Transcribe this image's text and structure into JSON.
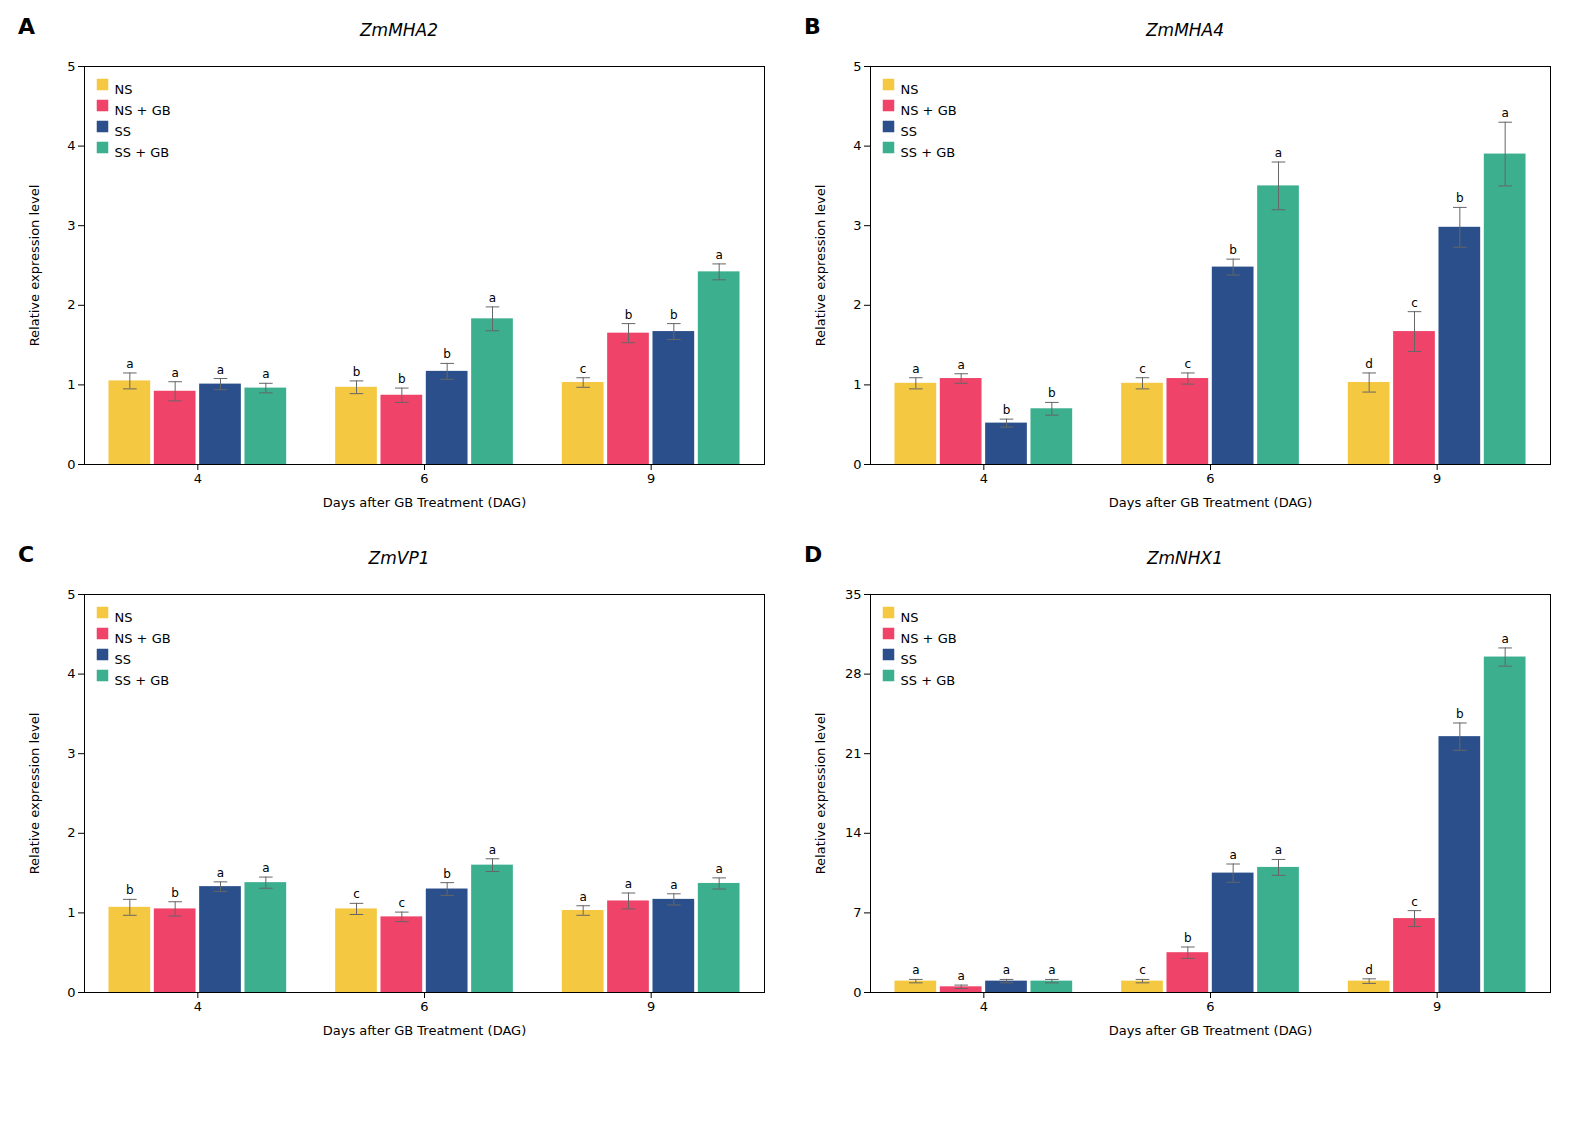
{
  "chart_data": [
    {
      "type": "bar",
      "title": "ZmMHA2",
      "annotation": "A",
      "xlabel": "Days after GB Treatment (DAG)",
      "ylabel": "Relative expression level",
      "categories": [
        "4",
        "6",
        "9"
      ],
      "series": [
        {
          "name": "NS",
          "color": "#F5C842",
          "values": [
            1.05,
            0.97,
            1.03
          ],
          "errors": [
            0.1,
            0.08,
            0.06
          ],
          "letters": [
            "a",
            "b",
            "c"
          ]
        },
        {
          "name": "NS + GB",
          "color": "#F0436A",
          "values": [
            0.92,
            0.87,
            1.65
          ],
          "errors": [
            0.12,
            0.09,
            0.12
          ],
          "letters": [
            "a",
            "b",
            "b"
          ]
        },
        {
          "name": "SS",
          "color": "#2B4F8A",
          "values": [
            1.01,
            1.17,
            1.67
          ],
          "errors": [
            0.07,
            0.1,
            0.1
          ],
          "letters": [
            "a",
            "b",
            "b"
          ]
        },
        {
          "name": "SS + GB",
          "color": "#3BAF8E",
          "values": [
            0.96,
            1.83,
            2.42
          ],
          "errors": [
            0.06,
            0.15,
            0.1
          ],
          "letters": [
            "a",
            "a",
            "a"
          ]
        }
      ],
      "ylim": [
        0,
        5
      ],
      "yticks": [
        0,
        1,
        2,
        3,
        4,
        5
      ],
      "grid": false,
      "legend": "upper left"
    },
    {
      "type": "bar",
      "title": "ZmMHA4",
      "annotation": "B",
      "xlabel": "Days after GB Treatment (DAG)",
      "ylabel": "Relative expression level",
      "categories": [
        "4",
        "6",
        "9"
      ],
      "series": [
        {
          "name": "NS",
          "color": "#F5C842",
          "values": [
            1.02,
            1.02,
            1.03
          ],
          "errors": [
            0.07,
            0.07,
            0.12
          ],
          "letters": [
            "a",
            "c",
            "d"
          ]
        },
        {
          "name": "NS + GB",
          "color": "#F0436A",
          "values": [
            1.08,
            1.08,
            1.67
          ],
          "errors": [
            0.06,
            0.07,
            0.25
          ],
          "letters": [
            "a",
            "c",
            "c"
          ]
        },
        {
          "name": "SS",
          "color": "#2B4F8A",
          "values": [
            0.52,
            2.48,
            2.98
          ],
          "errors": [
            0.05,
            0.1,
            0.25
          ],
          "letters": [
            "b",
            "b",
            "b"
          ]
        },
        {
          "name": "SS + GB",
          "color": "#3BAF8E",
          "values": [
            0.7,
            3.5,
            3.9
          ],
          "errors": [
            0.08,
            0.3,
            0.4
          ],
          "letters": [
            "b",
            "a",
            "a"
          ]
        }
      ],
      "ylim": [
        0,
        5
      ],
      "yticks": [
        0,
        1,
        2,
        3,
        4,
        5
      ],
      "grid": false,
      "legend": "upper left"
    },
    {
      "type": "bar",
      "title": "ZmVP1",
      "annotation": "C",
      "xlabel": "Days after GB Treatment (DAG)",
      "ylabel": "Relative expression level",
      "categories": [
        "4",
        "6",
        "9"
      ],
      "series": [
        {
          "name": "NS",
          "color": "#F5C842",
          "values": [
            1.07,
            1.05,
            1.03
          ],
          "errors": [
            0.1,
            0.07,
            0.06
          ],
          "letters": [
            "b",
            "c",
            "a"
          ]
        },
        {
          "name": "NS + GB",
          "color": "#F0436A",
          "values": [
            1.05,
            0.95,
            1.15
          ],
          "errors": [
            0.09,
            0.06,
            0.1
          ],
          "letters": [
            "b",
            "c",
            "a"
          ]
        },
        {
          "name": "SS",
          "color": "#2B4F8A",
          "values": [
            1.33,
            1.3,
            1.17
          ],
          "errors": [
            0.06,
            0.08,
            0.07
          ],
          "letters": [
            "a",
            "b",
            "a"
          ]
        },
        {
          "name": "SS + GB",
          "color": "#3BAF8E",
          "values": [
            1.38,
            1.6,
            1.37
          ],
          "errors": [
            0.07,
            0.08,
            0.07
          ],
          "letters": [
            "a",
            "a",
            "a"
          ]
        }
      ],
      "ylim": [
        0,
        5
      ],
      "yticks": [
        0,
        1,
        2,
        3,
        4,
        5
      ],
      "grid": false,
      "legend": "upper left"
    },
    {
      "type": "bar",
      "title": "ZmNHX1",
      "annotation": "D",
      "xlabel": "Days after GB Treatment (DAG)",
      "ylabel": "Relative expression level",
      "categories": [
        "4",
        "6",
        "9"
      ],
      "series": [
        {
          "name": "NS",
          "color": "#F5C842",
          "values": [
            1.0,
            1.0,
            1.0
          ],
          "errors": [
            0.15,
            0.15,
            0.2
          ],
          "letters": [
            "a",
            "c",
            "d"
          ]
        },
        {
          "name": "NS + GB",
          "color": "#F0436A",
          "values": [
            0.5,
            3.5,
            6.5
          ],
          "errors": [
            0.15,
            0.5,
            0.7
          ],
          "letters": [
            "a",
            "b",
            "c"
          ]
        },
        {
          "name": "SS",
          "color": "#2B4F8A",
          "values": [
            1.0,
            10.5,
            22.5
          ],
          "errors": [
            0.15,
            0.8,
            1.2
          ],
          "letters": [
            "a",
            "a",
            "b"
          ]
        },
        {
          "name": "SS + GB",
          "color": "#3BAF8E",
          "values": [
            1.0,
            11.0,
            29.5
          ],
          "errors": [
            0.15,
            0.7,
            0.8
          ],
          "letters": [
            "a",
            "a",
            "a"
          ]
        }
      ],
      "ylim": [
        0,
        35
      ],
      "yticks": [
        0,
        7,
        14,
        21,
        28,
        35
      ],
      "grid": false,
      "legend": "upper left"
    }
  ]
}
